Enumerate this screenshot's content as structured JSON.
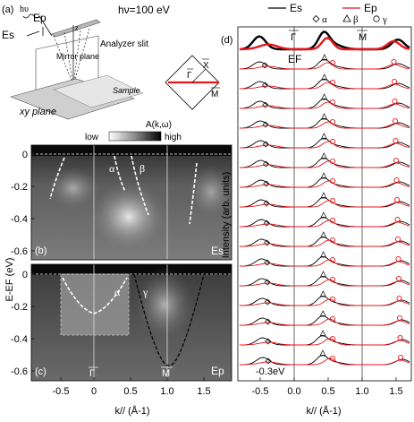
{
  "panel_a": {
    "label": "(a)",
    "photon_symbol": "hυ",
    "photon_energy": "hν=100 eV",
    "ep_label": "Ep",
    "es_label": "Es",
    "z_label": "z",
    "slit_label": "Analyzer slit",
    "mirror_label": "Mirror plane",
    "sample_label": "Sample",
    "xy_label": "xy plane"
  },
  "bz": {
    "gamma": "Γ",
    "x": "X",
    "m": "M"
  },
  "colorbar": {
    "title": "A(k,ω)",
    "low": "low",
    "high": "high"
  },
  "panel_b": {
    "label": "(b)",
    "pol": "Es",
    "alpha": "α",
    "beta": "β"
  },
  "panel_c": {
    "label": "(c)",
    "pol": "Ep",
    "alpha": "α",
    "gamma": "γ",
    "gamma_pt": "Γ",
    "m_pt": "M"
  },
  "y_axis": {
    "label": "E-EF (eV)",
    "ticks_b": [
      "0",
      "-0.2",
      "-0.4",
      "-0.6"
    ],
    "ticks_c": [
      "0",
      "-0.2",
      "-0.4",
      "-0.6"
    ]
  },
  "x_axis": {
    "label": "k// (Å-1)",
    "ticks": [
      "-0.5",
      "0",
      "0.5",
      "1.0",
      "1.5"
    ]
  },
  "panel_d": {
    "label": "(d)",
    "ylabel": "Intensity (arb. units)",
    "gamma": "Γ",
    "m": "M",
    "ef": "EF",
    "bottom_label": "-0.3eV",
    "legend": {
      "es": "Es",
      "ep": "Ep",
      "alpha": "α",
      "beta": "β",
      "gamma": "γ"
    },
    "x_ticks": [
      "-0.5",
      "0.0",
      "0.5",
      "1.0",
      "1.5"
    ],
    "x_label": "k// (Å-1)",
    "es_color": "#000000",
    "ep_color": "#e8161b"
  }
}
